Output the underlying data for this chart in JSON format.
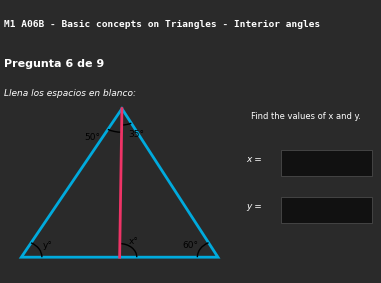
{
  "title": "M1 A06B - Basic concepts on Triangles - Interior angles",
  "subtitle": "Pregunta 6 de 9",
  "instruction": "Llena los espacios en blanco:",
  "title_bg": "#1e1e2e",
  "subtitle_bg": "#2a2a3a",
  "body_bg": "#2a2a2a",
  "triangle_panel_bg": "#ebebeb",
  "triangle_color": "#00aadd",
  "cevian_color": "#ee3366",
  "angle_top_left": "50°",
  "angle_top_right": "35°",
  "angle_bottom_left": "y°",
  "angle_bottom_mid": "x°",
  "angle_bottom_right": "60°",
  "right_text": "Find the values of x and y.",
  "x_label": "x =",
  "y_label": "y =",
  "input_box_color": "#111111",
  "input_border_color": "#444444",
  "text_color": "#ffffff",
  "label_color": "#dddddd"
}
